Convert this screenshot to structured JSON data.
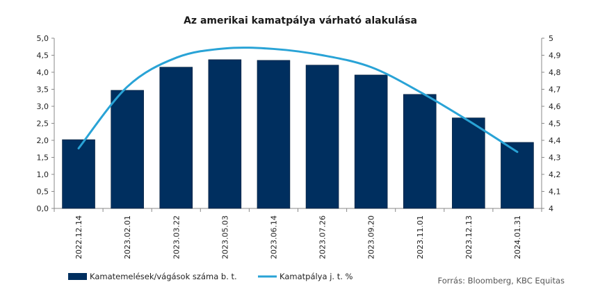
{
  "chart_data": {
    "type": "bar+line",
    "title": "Az amerikai kamatpálya várható alakulása",
    "categories": [
      "2022.12.14",
      "2023.02.01",
      "2023.03.22",
      "2023.05.03",
      "2023.06.14",
      "2023.07.26",
      "2023.09.20",
      "2023.11.01",
      "2023.12.13",
      "2024.01.31"
    ],
    "bar_series": {
      "name": "Kamatemelések/vágások száma b. t.",
      "axis": "left",
      "values": [
        2.02,
        3.47,
        4.15,
        4.37,
        4.35,
        4.21,
        3.92,
        3.35,
        2.66,
        1.94
      ],
      "color": "#002f5f"
    },
    "line_series": {
      "name": "Kamatpálya j. t. %",
      "axis": "right",
      "values": [
        4.353,
        4.715,
        4.885,
        4.94,
        4.937,
        4.9,
        4.83,
        4.685,
        4.515,
        4.332
      ],
      "color": "#29a3d6"
    },
    "y_left": {
      "min": 0,
      "max": 5,
      "step": 0.5,
      "ticks": [
        "0,0",
        "0,5",
        "1,0",
        "1,5",
        "2,0",
        "2,5",
        "3,0",
        "3,5",
        "4,0",
        "4,5",
        "5,0"
      ]
    },
    "y_right": {
      "min": 4,
      "max": 5,
      "step": 0.1,
      "ticks": [
        "4",
        "4,1",
        "4,2",
        "4,3",
        "4,4",
        "4,5",
        "4,6",
        "4,7",
        "4,8",
        "4,9",
        "5"
      ]
    },
    "grid": false,
    "legend": "bottom-left",
    "source": "Forrás: Bloomberg, KBC Equitas"
  }
}
